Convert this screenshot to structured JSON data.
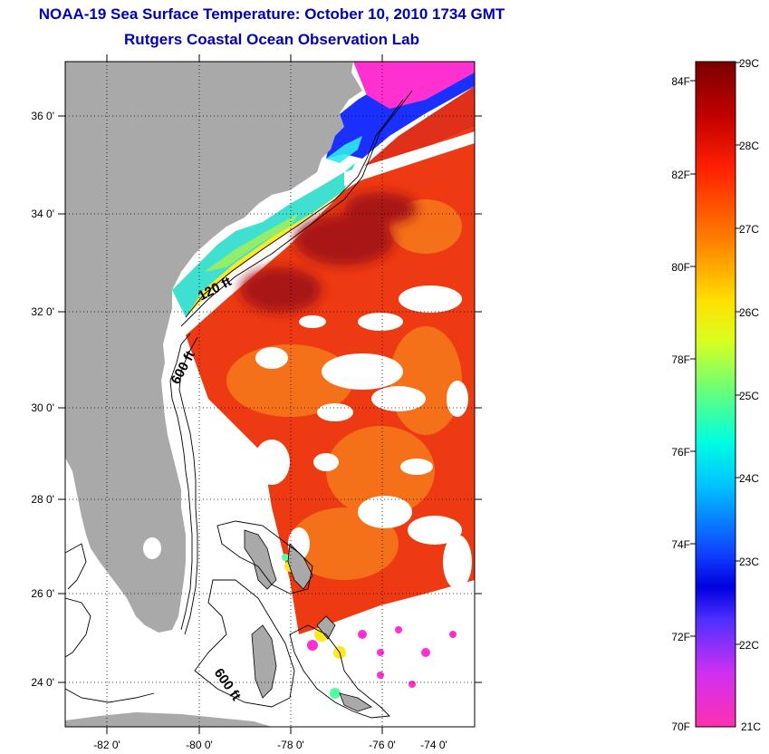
{
  "header": {
    "title": "NOAA-19 Sea Surface Temperature:  October 10, 2010 1734 GMT",
    "subtitle": "Rutgers Coastal Ocean Observation Lab"
  },
  "map": {
    "lat_labels": [
      "36 0'",
      "34 0'",
      "32 0'",
      "30 0'",
      "28 0'",
      "26 0'",
      "24 0'"
    ],
    "lon_labels": [
      "-82 0'",
      "-80 0'",
      "-78 0'",
      "-76 0'",
      "-74 0'"
    ],
    "contour_labels": [
      "120 ft",
      "600 ft",
      "600 ft"
    ],
    "colors": {
      "land": "#a9a9a9",
      "cloud": "#ffffff",
      "warm_core": "#a01010",
      "warm": "#ee2a10",
      "mid": "#f56a18",
      "cool": "#ffe820",
      "coastal": "#40e0c0",
      "cold": "#1a2cff"
    }
  },
  "colorbar": {
    "fahrenheit_labels": [
      "84F",
      "82F",
      "80F",
      "78F",
      "76F",
      "74F",
      "72F",
      "70F"
    ],
    "celsius_labels": [
      "29C",
      "28C",
      "27C",
      "26C",
      "25C",
      "24C",
      "23C",
      "22C",
      "21C"
    ],
    "gradient_stops": [
      "#7a0000",
      "#d00000",
      "#ff3000",
      "#ff7f00",
      "#ffd000",
      "#ffff00",
      "#a0ff40",
      "#30ffb0",
      "#00ffff",
      "#00a0ff",
      "#1030ff",
      "#0000e0",
      "#6040ff",
      "#c040ff",
      "#ff20d0",
      "#ff30b0"
    ]
  }
}
